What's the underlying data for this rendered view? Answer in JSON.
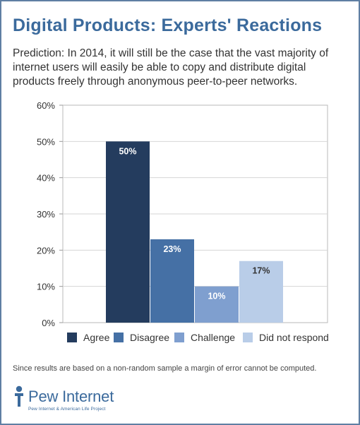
{
  "header": {
    "title": "Digital Products: Experts' Reactions",
    "subtitle": "Prediction: In 2014, it will still be the case that the vast majority of internet users will easily be able to copy and distribute digital products freely through anonymous peer-to-peer networks."
  },
  "footer": {
    "note": "Since results are based on a non-random sample a margin of error cannot be computed.",
    "logo_name": "Pew Internet",
    "logo_tagline": "Pew Internet & American Life Project"
  },
  "chart_data": {
    "type": "bar",
    "categories": [
      "Agree",
      "Disagree",
      "Challenge",
      "Did not respond"
    ],
    "values": [
      50,
      23,
      10,
      17
    ],
    "data_labels": [
      "50%",
      "23%",
      "10%",
      "17%"
    ],
    "colors": [
      "#243c5e",
      "#4570a5",
      "#7f9fcf",
      "#b9cde8"
    ],
    "label_colors": [
      "#ffffff",
      "#ffffff",
      "#ffffff",
      "#333333"
    ],
    "ylim": [
      0,
      60
    ],
    "yticks": [
      0,
      10,
      20,
      30,
      40,
      50,
      60
    ],
    "ytick_labels": [
      "0%",
      "10%",
      "20%",
      "30%",
      "40%",
      "50%",
      "60%"
    ],
    "grid": true,
    "legend_position": "bottom",
    "title": "",
    "xlabel": "",
    "ylabel": ""
  }
}
